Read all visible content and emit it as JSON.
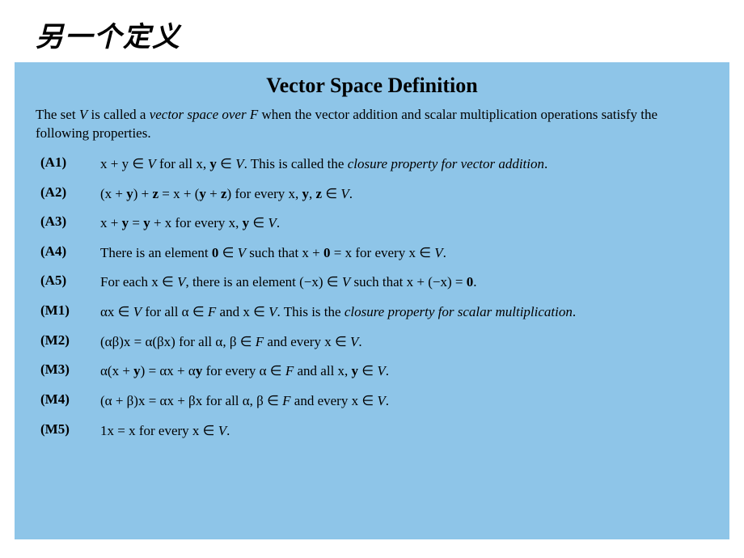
{
  "page": {
    "title_zh": "另一个定义",
    "background_color": "#ffffff"
  },
  "panel": {
    "background_color": "#8ec5e8",
    "heading": "Vector Space Definition",
    "heading_fontsize": 26,
    "intro_prefix": "The set ",
    "intro_V": "V",
    "intro_mid1": " is called a ",
    "intro_term": "vector space over",
    "intro_F": " F ",
    "intro_suffix": " when the vector addition and scalar multiplication operations satisfy the following properties.",
    "body_fontsize": 17,
    "text_color": "#000000"
  },
  "axioms": [
    {
      "label": "(A1)",
      "body_html": "x + y ∈ <span class='scr'>V</span> for all x, <span class='bold'>y</span> ∈ <span class='scr'>V</span>. This is called the <span class='ital'>closure property for vector addition</span>."
    },
    {
      "label": "(A2)",
      "body_html": "(x + <span class='bold'>y</span>) + <span class='bold'>z</span> = x + (<span class='bold'>y</span> + <span class='bold'>z</span>)  for every  x, <span class='bold'>y</span>, <span class='bold'>z</span> ∈ <span class='scr'>V</span>."
    },
    {
      "label": "(A3)",
      "body_html": "x + <span class='bold'>y</span> = <span class='bold'>y</span> + x  for every  x, <span class='bold'>y</span> ∈ <span class='scr'>V</span>."
    },
    {
      "label": "(A4)",
      "body_html": "There is an element <span class='bold'>0</span> ∈ <span class='scr'>V</span> such that x + <span class='bold'>0</span> = x for every x ∈ <span class='scr'>V</span>."
    },
    {
      "label": "(A5)",
      "body_html": "For each x ∈ <span class='scr'>V</span>, there is an element (−x) ∈ <span class='scr'>V</span> such that x + (−x) = <span class='bold'>0</span>."
    },
    {
      "label": "(M1)",
      "body_html": "αx ∈ <span class='scr'>V</span> for all α ∈ <span class='scr'>F</span> and x ∈ <span class='scr'>V</span>. This is the <span class='ital'>closure property for scalar multiplication</span>."
    },
    {
      "label": "(M2)",
      "body_html": "(αβ)x = α(βx)  for all  α, β ∈ <span class='scr'>F</span>  and every  x ∈ <span class='scr'>V</span>."
    },
    {
      "label": "(M3)",
      "body_html": "α(x + <span class='bold'>y</span>) = αx + α<span class='bold'>y</span>  for every  α ∈ <span class='scr'>F</span>  and all  x, <span class='bold'>y</span> ∈ <span class='scr'>V</span>."
    },
    {
      "label": "(M4)",
      "body_html": "(α + β)x = αx + βx  for all  α, β ∈ <span class='scr'>F</span>  and every  x ∈ <span class='scr'>V</span>."
    },
    {
      "label": "(M5)",
      "body_html": "1x = x  for every  x ∈ <span class='scr'>V</span>."
    }
  ]
}
